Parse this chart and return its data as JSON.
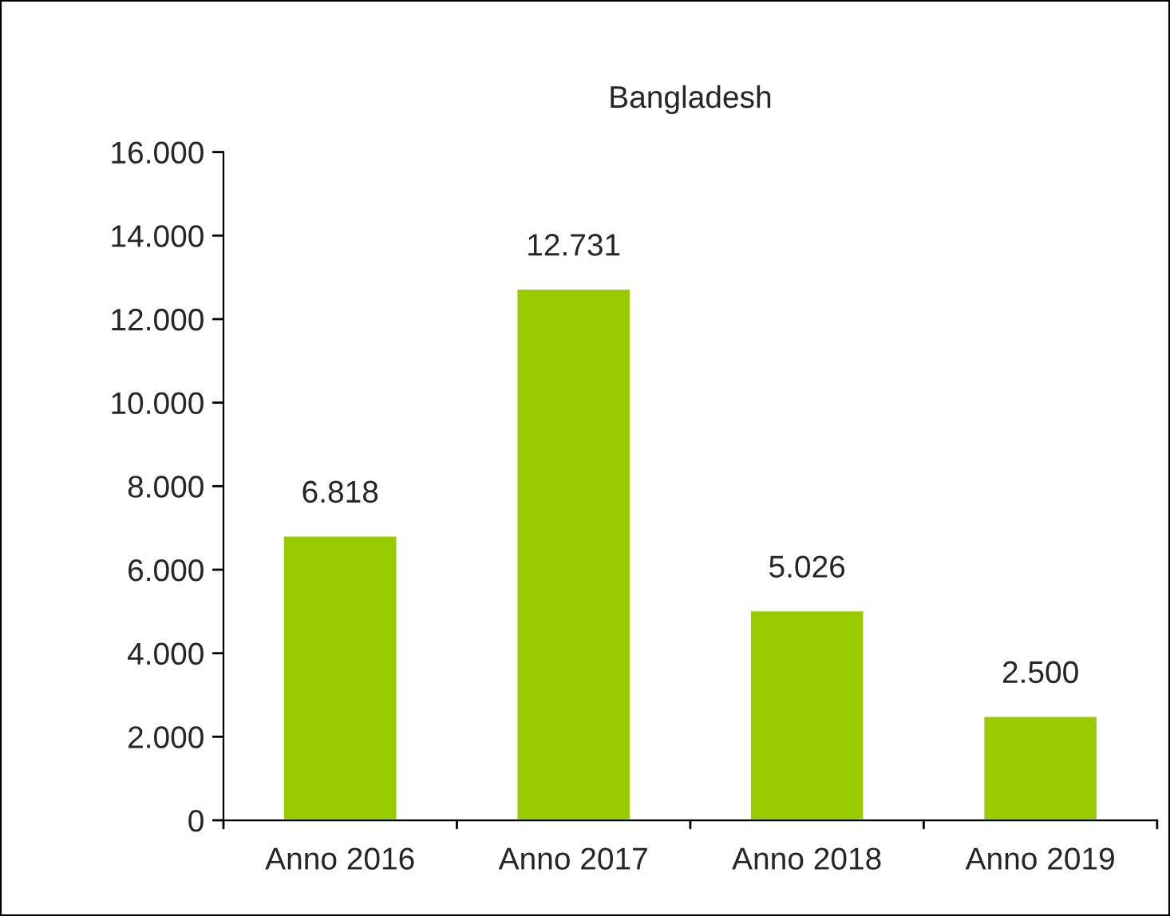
{
  "chart_data": {
    "type": "bar",
    "title": "Bangladesh",
    "categories": [
      "Anno 2016",
      "Anno 2017",
      "Anno 2018",
      "Anno 2019"
    ],
    "values": [
      6818,
      12731,
      5026,
      2500
    ],
    "value_labels": [
      "6.818",
      "12.731",
      "5.026",
      "2.500"
    ],
    "color": "#99cc00",
    "ylim": [
      0,
      16000
    ],
    "yticks": [
      {
        "value": 0,
        "label": "0"
      },
      {
        "value": 2000,
        "label": "2.000"
      },
      {
        "value": 4000,
        "label": "4.000"
      },
      {
        "value": 6000,
        "label": "6.000"
      },
      {
        "value": 8000,
        "label": "8.000"
      },
      {
        "value": 10000,
        "label": "10.000"
      },
      {
        "value": 12000,
        "label": "12.000"
      },
      {
        "value": 14000,
        "label": "14.000"
      },
      {
        "value": 16000,
        "label": "16.000"
      }
    ],
    "grid": false,
    "legend": false
  }
}
